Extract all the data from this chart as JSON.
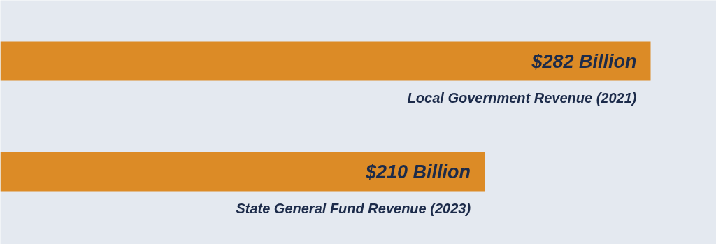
{
  "chart_data": {
    "type": "bar",
    "orientation": "horizontal",
    "categories": [
      "Local Government Revenue (2021)",
      "State General Fund Revenue (2023)"
    ],
    "values": [
      282,
      210
    ],
    "color": "#dc8b26",
    "value_labels": [
      "$282 Billion",
      "$210 Billion"
    ]
  }
}
